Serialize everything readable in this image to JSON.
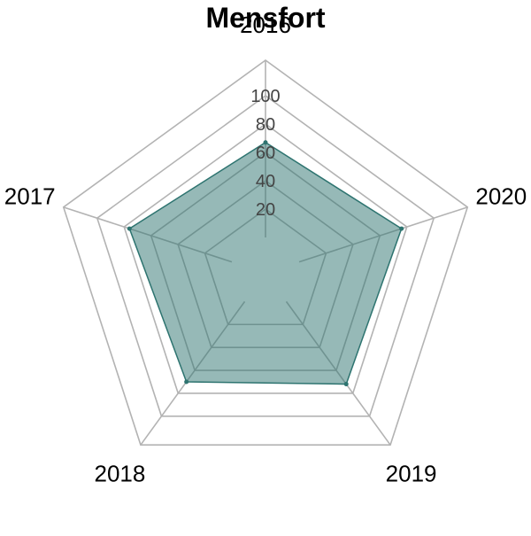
{
  "chart_data": {
    "type": "radar",
    "title": "Mensfort",
    "axes": [
      "2016",
      "2017",
      "2018",
      "2019",
      "2020"
    ],
    "series": [
      {
        "values": [
          67,
          76,
          70,
          72,
          76
        ],
        "color": "#2e7470"
      }
    ],
    "range": [
      0,
      100
    ],
    "ticks": [
      20,
      40,
      60,
      80,
      100
    ],
    "ring_levels": [
      20,
      40,
      60,
      80,
      100
    ],
    "grid": true,
    "colors": {
      "fill": "#2e7470",
      "stroke": "#2e7470",
      "grid": "#b3b3b3",
      "inner_grid": "#888888"
    }
  }
}
